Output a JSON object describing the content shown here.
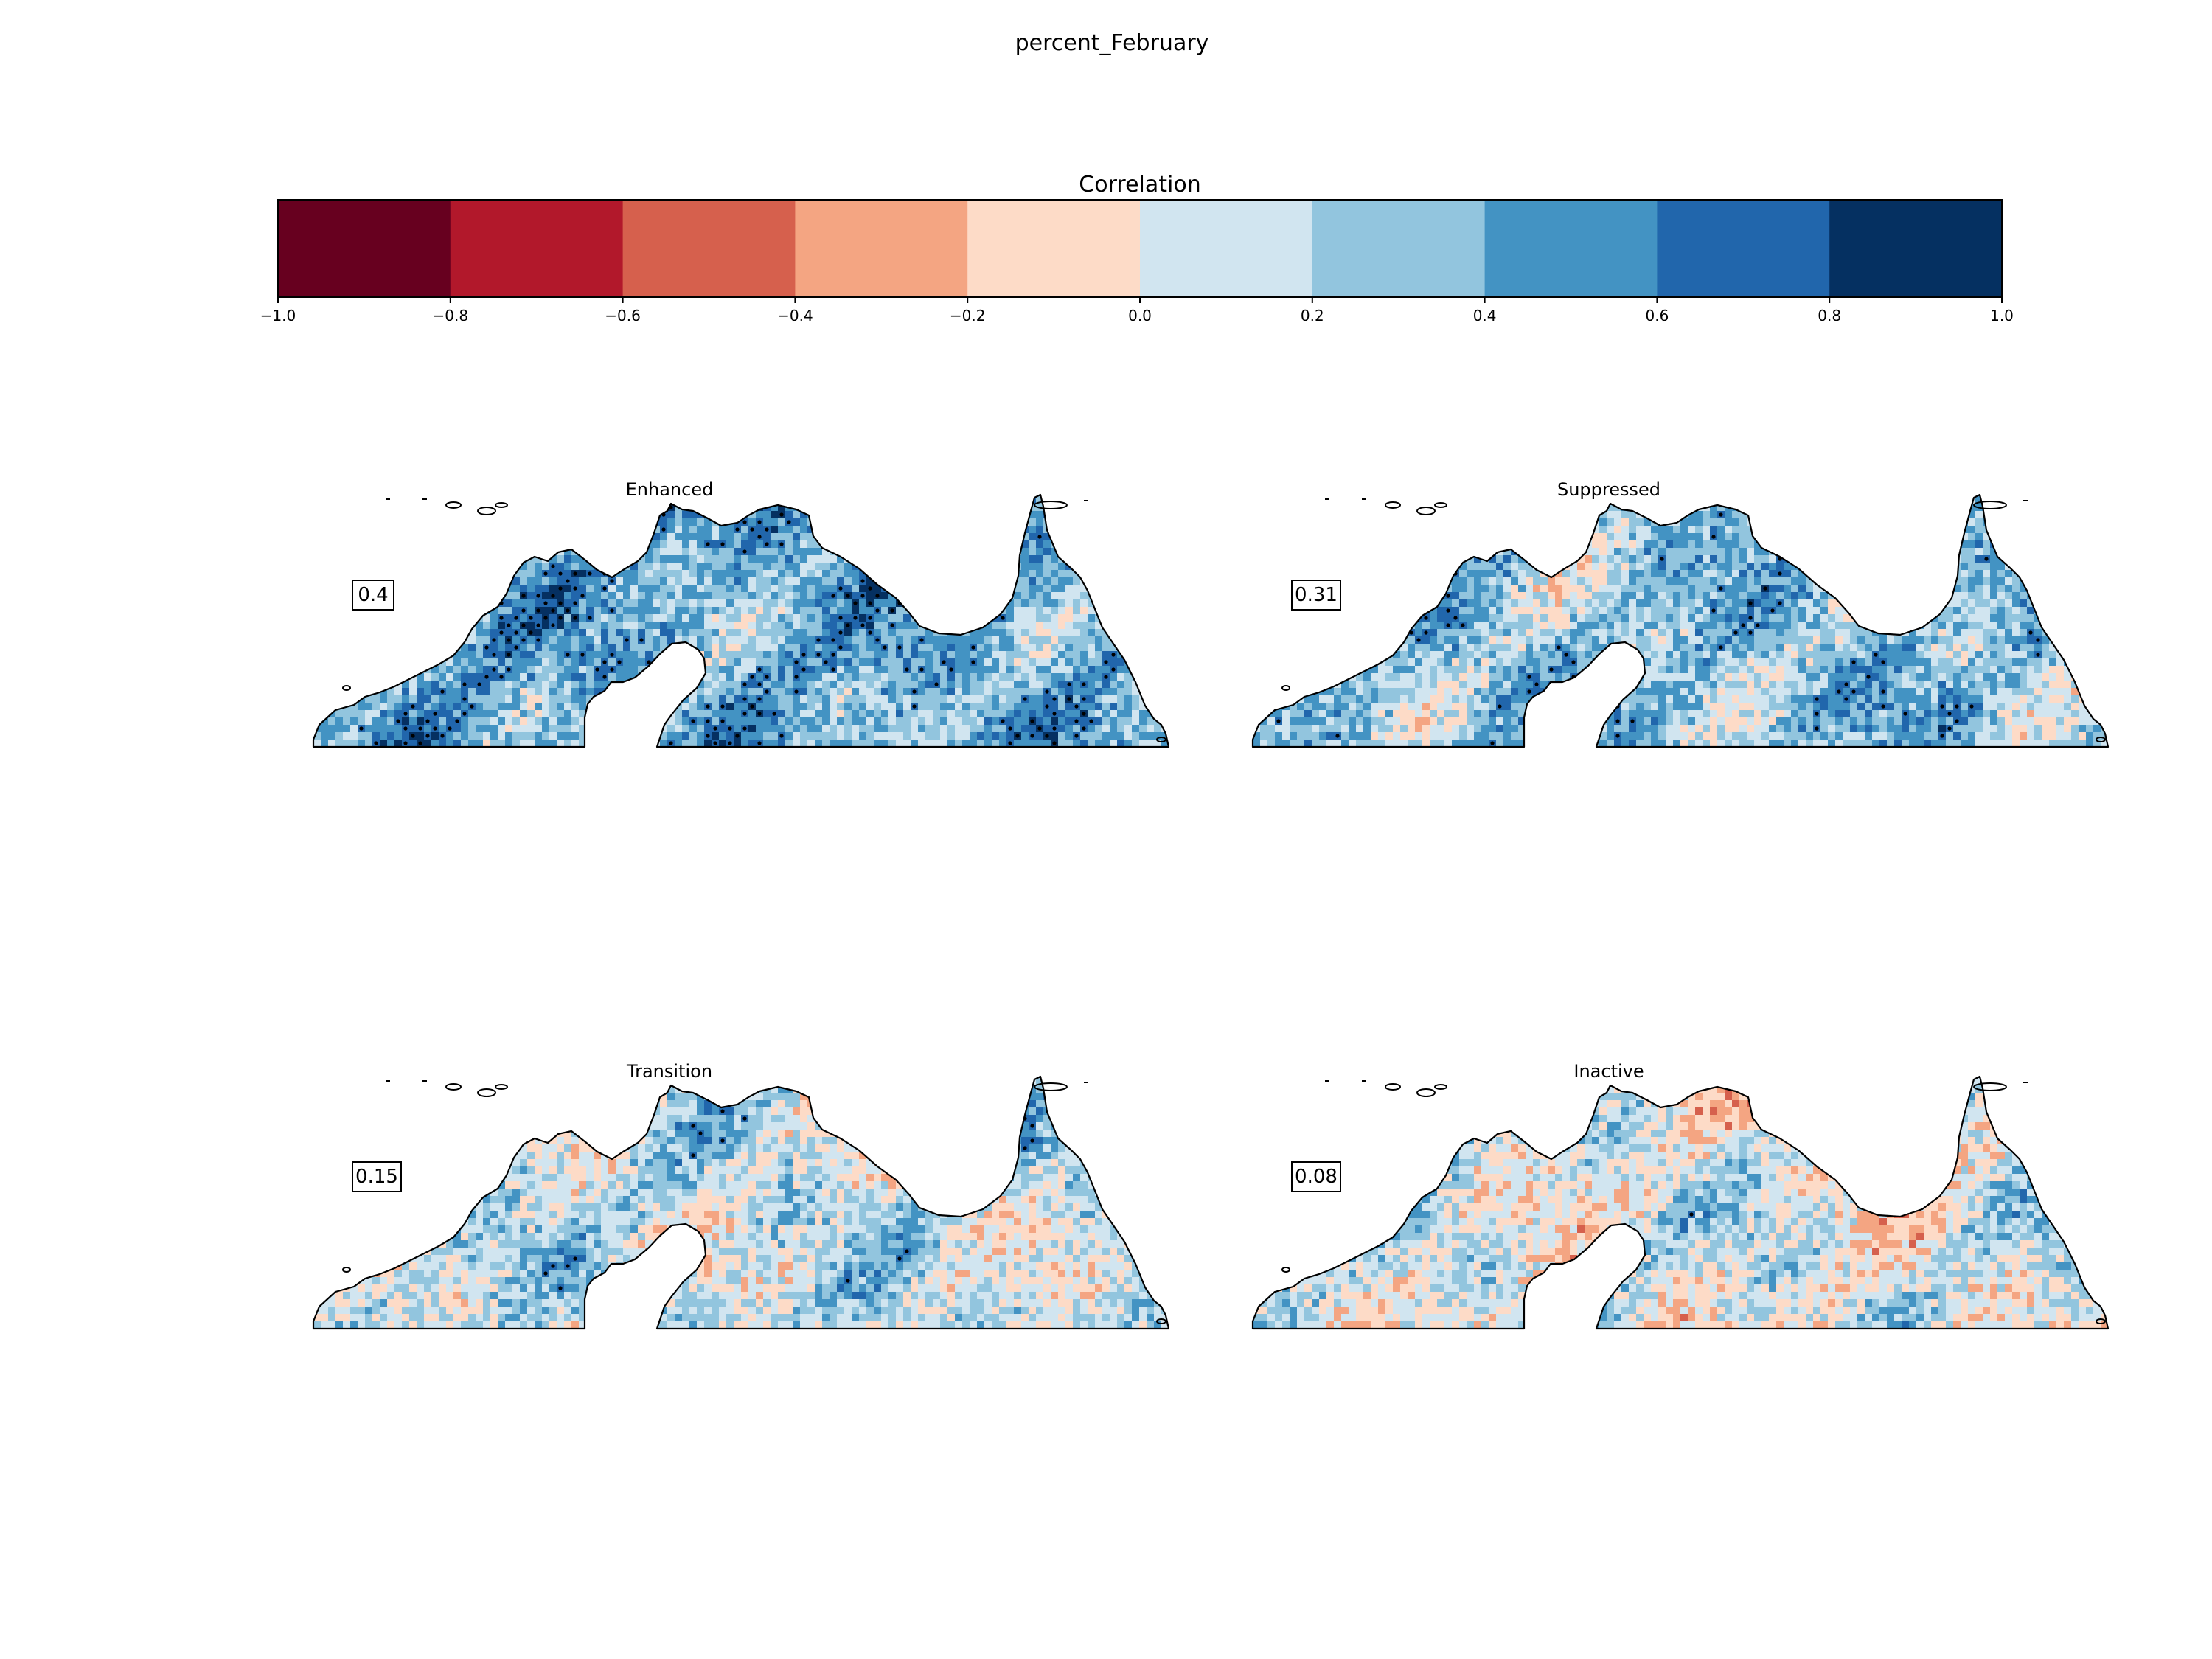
{
  "title": "percent_February",
  "colorbar": {
    "label": "Correlation",
    "boundaries": [
      -1.0,
      -0.8,
      -0.6,
      -0.4,
      -0.2,
      0.0,
      0.2,
      0.4,
      0.6,
      0.8,
      1.0
    ],
    "tick_labels": [
      "−1.0",
      "−0.8",
      "−0.6",
      "−0.4",
      "−0.2",
      "0.0",
      "0.2",
      "0.4",
      "0.6",
      "0.8",
      "1.0"
    ],
    "colors": [
      "#67001f",
      "#b2182b",
      "#d6604d",
      "#f4a582",
      "#fddbc7",
      "#d1e5f0",
      "#92c5de",
      "#4393c3",
      "#2166ac",
      "#053061"
    ]
  },
  "chart_data": {
    "type": "heatmap",
    "title": "percent_February",
    "variable": "Correlation",
    "vmin": -1.0,
    "vmax": 1.0,
    "panels": [
      {
        "name": "Enhanced",
        "score": "0.4",
        "mean_correlation": 0.4
      },
      {
        "name": "Suppressed",
        "score": "0.31",
        "mean_correlation": 0.31
      },
      {
        "name": "Transition",
        "score": "0.15",
        "mean_correlation": 0.15
      },
      {
        "name": "Inactive",
        "score": "0.08",
        "mean_correlation": 0.08
      }
    ]
  }
}
